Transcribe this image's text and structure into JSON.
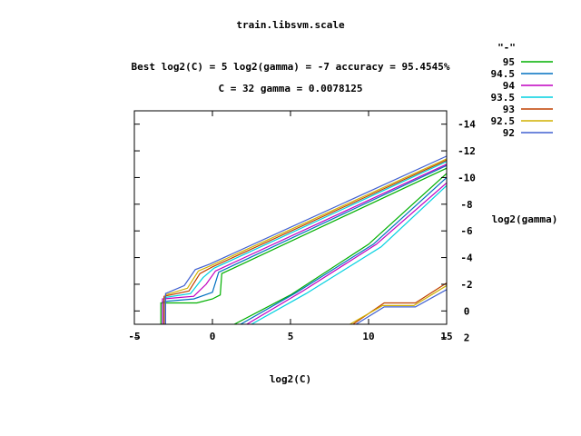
{
  "chart_data": {
    "type": "line",
    "title": "train.libsvm.scale",
    "subtitle_line1": "Best log2(C) = 5  log2(gamma) = -7  accuracy = 95.4545%",
    "subtitle_line2": "C = 32  gamma = 0.0078125",
    "xlabel": "log2(C)",
    "ylabel": "log2(gamma)",
    "xlim": [
      -5,
      15
    ],
    "ylim": [
      1,
      -15
    ],
    "x_ticks": [
      "-5",
      "0",
      "5",
      "10",
      "15"
    ],
    "y_ticks": [
      "-14",
      "-12",
      "-10",
      "-8",
      "-6",
      "-4",
      "-2",
      "0",
      "2"
    ],
    "legend_title": "\"-\"",
    "legend_position": "top-right",
    "series": [
      {
        "name": "95",
        "color": "#00b000",
        "segments": [
          [
            [
              -3.3,
              1
            ],
            [
              -3.3,
              -0.6
            ],
            [
              -1.0,
              -0.6
            ],
            [
              0.0,
              -0.9
            ],
            [
              0.5,
              -1.2
            ],
            [
              0.6,
              -2.8
            ],
            [
              15,
              -10.7
            ]
          ],
          [
            [
              1.4,
              1
            ],
            [
              5.0,
              -1.2
            ],
            [
              10.0,
              -5.0
            ],
            [
              15,
              -10.3
            ]
          ]
        ]
      },
      {
        "name": "94.5",
        "color": "#0070c0",
        "segments": [
          [
            [
              -3.2,
              1
            ],
            [
              -3.2,
              -0.7
            ],
            [
              -1.2,
              -0.9
            ],
            [
              0.0,
              -1.4
            ],
            [
              0.4,
              -2.9
            ],
            [
              15,
              -10.9
            ]
          ],
          [
            [
              1.8,
              1
            ],
            [
              5.4,
              -1.4
            ],
            [
              10.3,
              -5.0
            ],
            [
              15,
              -10.0
            ]
          ]
        ]
      },
      {
        "name": "94",
        "color": "#c000c0",
        "segments": [
          [
            [
              -3.2,
              1
            ],
            [
              -3.2,
              -0.9
            ],
            [
              -1.2,
              -1.1
            ],
            [
              -0.4,
              -2.0
            ],
            [
              0.2,
              -3.0
            ],
            [
              15,
              -11.0
            ]
          ],
          [
            [
              2.2,
              1
            ],
            [
              5.8,
              -1.5
            ],
            [
              10.5,
              -5.0
            ],
            [
              15,
              -9.6
            ]
          ]
        ]
      },
      {
        "name": "93.5",
        "color": "#00d0e0",
        "segments": [
          [
            [
              -3.1,
              1
            ],
            [
              -3.1,
              -1.0
            ],
            [
              -1.4,
              -1.3
            ],
            [
              -0.6,
              -2.5
            ],
            [
              0.1,
              -3.2
            ],
            [
              15,
              -11.2
            ]
          ],
          [
            [
              2.5,
              1
            ],
            [
              6.0,
              -1.3
            ],
            [
              10.8,
              -4.8
            ],
            [
              15,
              -9.4
            ]
          ]
        ]
      },
      {
        "name": "93",
        "color": "#c04000",
        "segments": [
          [
            [
              -3.1,
              1
            ],
            [
              -3.1,
              -1.1
            ],
            [
              -1.5,
              -1.5
            ],
            [
              -0.8,
              -2.8
            ],
            [
              0.0,
              -3.3
            ],
            [
              15,
              -11.3
            ]
          ],
          [
            [
              9.0,
              1
            ],
            [
              11.0,
              -0.6
            ],
            [
              13.0,
              -0.6
            ],
            [
              15,
              -2.1
            ]
          ]
        ]
      },
      {
        "name": "92.5",
        "color": "#d0b000",
        "segments": [
          [
            [
              -3.0,
              1
            ],
            [
              -3.0,
              -1.2
            ],
            [
              -1.6,
              -1.7
            ],
            [
              -0.9,
              -3.0
            ],
            [
              -0.1,
              -3.4
            ],
            [
              15,
              -11.4
            ]
          ],
          [
            [
              8.8,
              1
            ],
            [
              10.9,
              -0.4
            ],
            [
              12.9,
              -0.4
            ],
            [
              15,
              -1.9
            ]
          ]
        ]
      },
      {
        "name": "92",
        "color": "#4060d0",
        "segments": [
          [
            [
              -3.0,
              1
            ],
            [
              -3.0,
              -1.3
            ],
            [
              -1.8,
              -1.9
            ],
            [
              -1.1,
              -3.1
            ],
            [
              -0.2,
              -3.5
            ],
            [
              15,
              -11.6
            ]
          ],
          [
            [
              9.2,
              1
            ],
            [
              11.0,
              -0.3
            ],
            [
              13.0,
              -0.3
            ],
            [
              15,
              -1.6
            ]
          ]
        ]
      }
    ]
  }
}
